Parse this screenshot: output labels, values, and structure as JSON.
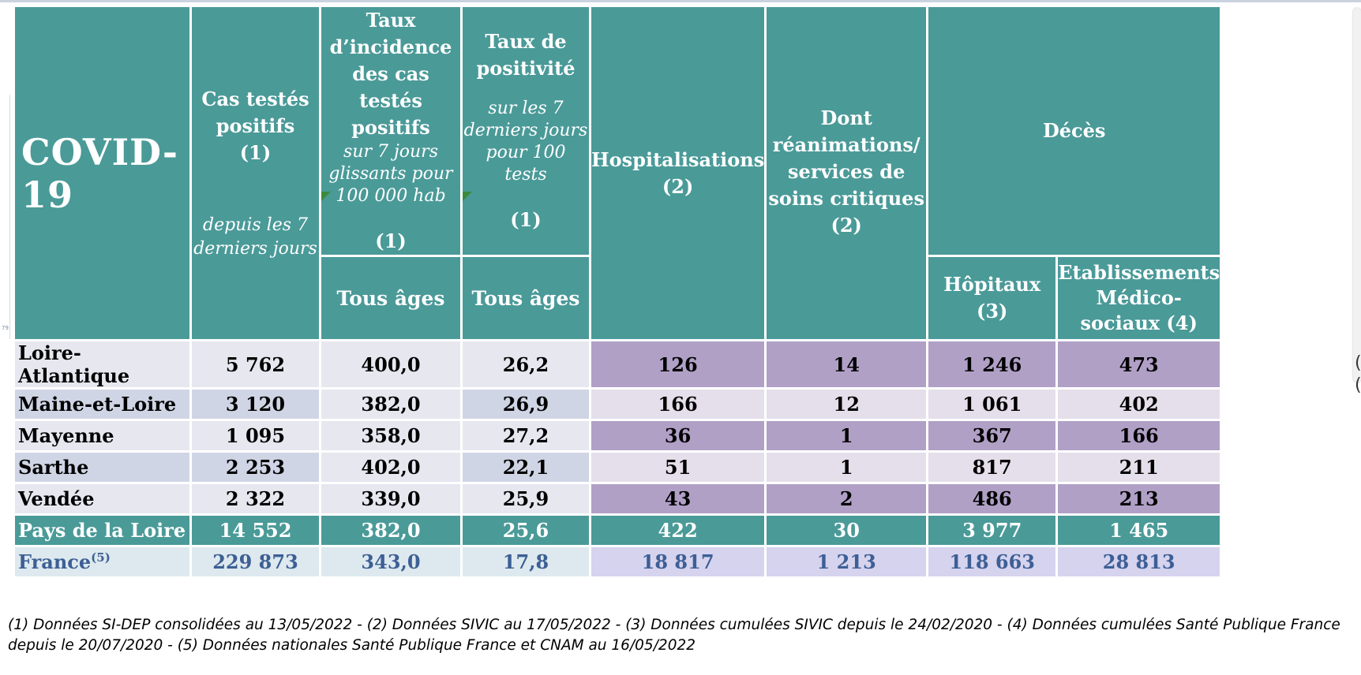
{
  "header": {
    "title": "COVID-19",
    "cas": {
      "line1": "Cas testés",
      "line2": "positifs",
      "ref": "(1)",
      "sub1": "depuis les 7",
      "sub2": "derniers jours"
    },
    "incidence": {
      "line1": "Taux",
      "line2": "d’incidence",
      "line3": "des cas testés",
      "line4": "positifs",
      "sub1": "sur 7 jours",
      "sub2": "glissants pour",
      "sub3": "100 000 hab",
      "ref": "(1)",
      "ages": "Tous âges"
    },
    "positivite": {
      "line1": "Taux de",
      "line2": "positivité",
      "sub1": "sur les 7",
      "sub2": "derniers jours",
      "sub3": "pour 100 tests",
      "ref": "(1)",
      "ages": "Tous âges"
    },
    "hosp": {
      "line1": "Hospitalisations",
      "ref": "(2)"
    },
    "rea": {
      "line1": "Dont",
      "line2": "réanimations/",
      "line3": "services de",
      "line4": "soins critiques",
      "ref": "(2)"
    },
    "deces": {
      "title": "Décès",
      "hopitaux": "Hôpitaux (3)",
      "ems1": "Etablissements",
      "ems2": "Médico-",
      "ems3": "sociaux (4)"
    }
  },
  "rows": [
    {
      "name": "Loire-Atlantique",
      "cas": "5 762",
      "incidence": "400,0",
      "positivite": "26,2",
      "hosp": "126",
      "rea": "14",
      "hopitaux": "1 246",
      "ems": "473"
    },
    {
      "name": "Maine-et-Loire",
      "cas": "3 120",
      "incidence": "382,0",
      "positivite": "26,9",
      "hosp": "166",
      "rea": "12",
      "hopitaux": "1 061",
      "ems": "402"
    },
    {
      "name": "Mayenne",
      "cas": "1 095",
      "incidence": "358,0",
      "positivite": "27,2",
      "hosp": "36",
      "rea": "1",
      "hopitaux": "367",
      "ems": "166"
    },
    {
      "name": "Sarthe",
      "cas": "2 253",
      "incidence": "402,0",
      "positivite": "22,1",
      "hosp": "51",
      "rea": "1",
      "hopitaux": "817",
      "ems": "211"
    },
    {
      "name": "Vendée",
      "cas": "2 322",
      "incidence": "339,0",
      "positivite": "25,9",
      "hosp": "43",
      "rea": "2",
      "hopitaux": "486",
      "ems": "213"
    }
  ],
  "total": {
    "name": "Pays de la Loire",
    "cas": "14 552",
    "incidence": "382,0",
    "positivite": "25,6",
    "hosp": "422",
    "rea": "30",
    "hopitaux": "3 977",
    "ems": "1 465"
  },
  "france": {
    "name": "France",
    "sup": "(5)",
    "cas": "229 873",
    "incidence": "343,0",
    "positivite": "17,8",
    "hosp": "18 817",
    "rea": "1 213",
    "hopitaux": "118 663",
    "ems": "28 813"
  },
  "notes": {
    "line1": "(1) Données SI-DEP consolidées au 13/05/2022 -  (2) Données SIVIC au 17/05/2022 - (3) Données cumulées SIVIC depuis le 24/02/2020 - (4) Données cumulées Santé Publique France",
    "line2": "depuis le 20/07/2020 - (5) Données nationales Santé Publique France et CNAM au 16/05/2022"
  },
  "colors": {
    "header": "#4a9a98",
    "purple": "#b0a0c6",
    "france_text": "#3d5f95"
  }
}
